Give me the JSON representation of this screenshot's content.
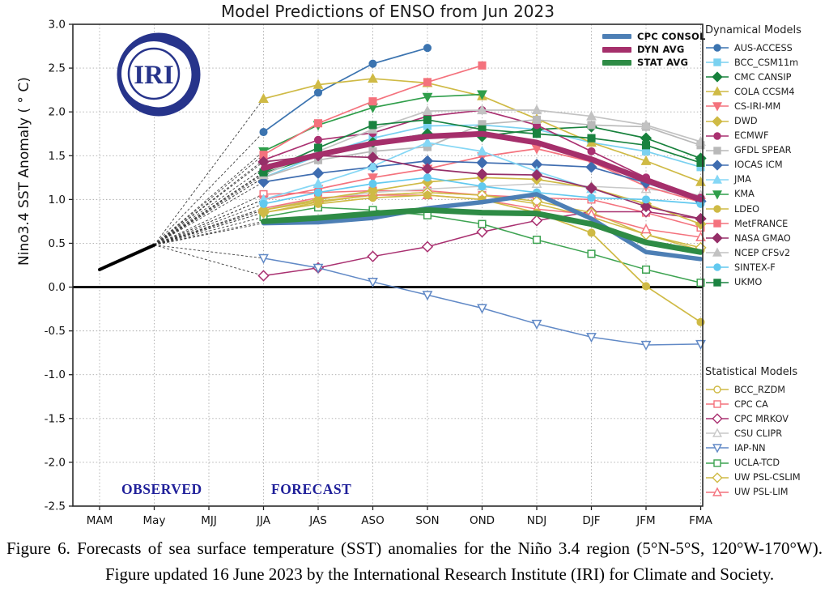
{
  "chart": {
    "title": "Model Predictions of ENSO from Jun 2023",
    "y_axis_label": "Nino3.4 SST Anomaly ( ° C)",
    "observed_label": "OBSERVED",
    "forecast_label": "FORECAST",
    "logo_text": "IRI"
  },
  "legend_dynamical": {
    "header": "Dynamical Models"
  },
  "legend_statistical": {
    "header": "Statistical Models"
  },
  "chart_data": {
    "type": "line",
    "title": "Model Predictions of ENSO from Jun 2023",
    "xlabel": "",
    "ylabel": "Nino3.4 SST Anomaly (°C)",
    "ylim": [
      -2.5,
      3.0
    ],
    "ytick_step": 0.5,
    "grid": true,
    "legend_position": "right",
    "x_categories": [
      "MAM",
      "May",
      "MJJ",
      "JJA",
      "JAS",
      "ASO",
      "SON",
      "OND",
      "NDJ",
      "DJF",
      "JFM",
      "FMA"
    ],
    "observed": {
      "label": "OBSERVED",
      "x_indices": [
        0,
        1
      ],
      "values": [
        0.2,
        0.48
      ],
      "color": "#000000"
    },
    "forecast_start_index": 3,
    "main_series": [
      {
        "name": "CPC CONSOL",
        "color": "#4d7fb5",
        "width": 5.5,
        "values": [
          0.73,
          0.74,
          0.79,
          0.9,
          0.97,
          1.06,
          0.78,
          0.4,
          0.32
        ]
      },
      {
        "name": "DYN AVG",
        "color": "#a52f6b",
        "width": 7,
        "values": [
          1.36,
          1.51,
          1.64,
          1.72,
          1.75,
          1.65,
          1.46,
          1.22,
          1.0
        ]
      },
      {
        "name": "STAT AVG",
        "color": "#2e8b45",
        "width": 7,
        "values": [
          0.75,
          0.79,
          0.84,
          0.88,
          0.85,
          0.84,
          0.72,
          0.51,
          0.4
        ]
      }
    ],
    "dynamical_models": [
      {
        "name": "AUS-ACCESS",
        "marker": "circle",
        "color": "#3c74b0",
        "values": [
          1.77,
          2.22,
          2.55,
          2.73,
          null,
          null,
          null,
          null,
          null
        ]
      },
      {
        "name": "BCC_CSM11m",
        "marker": "square",
        "color": "#7ad1f0",
        "values": [
          1.25,
          1.5,
          1.7,
          1.84,
          1.85,
          1.8,
          1.65,
          1.55,
          1.37
        ]
      },
      {
        "name": "CMC CANSIP",
        "marker": "diamond",
        "color": "#17813c",
        "values": [
          1.3,
          1.5,
          1.65,
          1.75,
          1.72,
          1.8,
          1.83,
          1.7,
          1.47
        ]
      },
      {
        "name": "COLA CCSM4",
        "marker": "triangle-up",
        "color": "#cfba45",
        "values": [
          2.15,
          2.31,
          2.38,
          2.33,
          2.18,
          1.92,
          1.65,
          1.44,
          1.2
        ]
      },
      {
        "name": "CS-IRI-MM",
        "marker": "triangle-down",
        "color": "#f4727d",
        "values": [
          1.0,
          1.12,
          1.25,
          1.35,
          1.49,
          1.58,
          1.43,
          1.15,
          0.97
        ]
      },
      {
        "name": "DWD",
        "marker": "diamond",
        "color": "#cfba45",
        "values": [
          0.88,
          1.0,
          1.1,
          1.2,
          1.25,
          1.23,
          1.13,
          0.95,
          0.72
        ]
      },
      {
        "name": "ECMWF",
        "marker": "circle",
        "color": "#aa3171",
        "values": [
          1.45,
          1.68,
          1.76,
          1.95,
          2.02,
          1.85,
          1.55,
          1.25,
          1.02
        ]
      },
      {
        "name": "GFDL SPEAR",
        "marker": "square",
        "color": "#b9b9b9",
        "values": [
          1.25,
          1.45,
          1.55,
          1.6,
          1.86,
          1.91,
          1.85,
          1.83,
          1.62
        ]
      },
      {
        "name": "IOCAS ICM",
        "marker": "diamond",
        "color": "#3f6db0",
        "values": [
          1.2,
          1.3,
          1.37,
          1.44,
          1.42,
          1.4,
          1.37,
          1.19,
          0.98
        ]
      },
      {
        "name": "JMA",
        "marker": "triangle-up",
        "color": "#85d7f5",
        "values": [
          1.0,
          1.18,
          1.38,
          1.65,
          1.55,
          1.32,
          1.12,
          null,
          null
        ]
      },
      {
        "name": "KMA",
        "marker": "triangle-down",
        "color": "#2f9e4a",
        "values": [
          1.55,
          1.85,
          2.05,
          2.17,
          2.2,
          null,
          null,
          null,
          null
        ]
      },
      {
        "name": "LDEO",
        "marker": "circle",
        "color": "#cfba45",
        "values": [
          0.85,
          0.95,
          1.02,
          1.05,
          1.0,
          0.85,
          0.62,
          0.01,
          -0.4
        ]
      },
      {
        "name": "MetFRANCE",
        "marker": "square",
        "color": "#f4727d",
        "values": [
          1.51,
          1.87,
          2.12,
          2.34,
          2.53,
          null,
          null,
          null,
          null
        ]
      },
      {
        "name": "NASA GMAO",
        "marker": "diamond",
        "color": "#952f68",
        "values": [
          1.43,
          1.5,
          1.48,
          1.35,
          1.29,
          1.28,
          1.13,
          0.92,
          0.78
        ]
      },
      {
        "name": "NCEP CFSv2",
        "marker": "triangle-up",
        "color": "#c2c2c2",
        "values": [
          1.28,
          1.55,
          1.8,
          2.01,
          2.02,
          2.02,
          1.95,
          1.85,
          1.66
        ]
      },
      {
        "name": "SINTEX-F",
        "marker": "circle",
        "color": "#62c9ef",
        "values": [
          0.95,
          1.08,
          1.18,
          1.25,
          1.15,
          1.08,
          1.02,
          1.0,
          0.95
        ]
      },
      {
        "name": "UKMO",
        "marker": "square",
        "color": "#1a8340",
        "values": [
          1.31,
          1.59,
          1.85,
          1.91,
          1.8,
          1.75,
          1.7,
          1.62,
          1.42
        ]
      }
    ],
    "statistical_models": [
      {
        "name": "BCC_RZDM",
        "marker": "circle",
        "color": "#cfba45",
        "values": [
          0.88,
          0.98,
          1.05,
          1.08,
          1.05,
          0.95,
          0.8,
          0.6,
          0.42
        ]
      },
      {
        "name": "CPC CA",
        "marker": "square",
        "color": "#f4727d",
        "values": [
          1.06,
          1.08,
          1.1,
          1.1,
          1.05,
          1.02,
          1.0,
          0.85,
          0.68
        ]
      },
      {
        "name": "CPC MRKOV",
        "marker": "diamond",
        "color": "#a93070",
        "values": [
          0.13,
          0.22,
          0.35,
          0.46,
          0.63,
          0.76,
          0.86,
          0.86,
          0.78
        ]
      },
      {
        "name": "CSU CLIPR",
        "marker": "triangle-up",
        "color": "#c8c8c8",
        "values": [
          0.9,
          1.0,
          1.08,
          1.12,
          1.15,
          1.18,
          1.15,
          1.12,
          1.05
        ]
      },
      {
        "name": "IAP-NN",
        "marker": "triangle-down",
        "color": "#6189c6",
        "values": [
          0.33,
          0.22,
          0.06,
          -0.09,
          -0.24,
          -0.42,
          -0.57,
          -0.66,
          -0.65
        ]
      },
      {
        "name": "UCLA-TCD",
        "marker": "square",
        "color": "#3da351",
        "values": [
          0.8,
          0.91,
          0.88,
          0.82,
          0.72,
          0.54,
          0.38,
          0.2,
          0.05
        ]
      },
      {
        "name": "UW PSL-CSLIM",
        "marker": "diamond",
        "color": "#cfba45",
        "values": [
          0.85,
          0.97,
          1.05,
          1.08,
          1.05,
          0.98,
          0.85,
          0.6,
          0.45
        ]
      },
      {
        "name": "UW PSL-LIM",
        "marker": "triangle-up",
        "color": "#f4727d",
        "values": [
          0.9,
          1.02,
          1.05,
          1.05,
          1.0,
          0.89,
          0.83,
          0.66,
          0.57
        ]
      }
    ]
  },
  "caption": {
    "text": "Figure 6. Forecasts of sea surface temperature (SST) anomalies for the Niño 3.4 region (5°N-5°S, 120°W-170°W). Figure updated 16 June 2023 by the International Research Institute (IRI) for Climate and Society."
  }
}
